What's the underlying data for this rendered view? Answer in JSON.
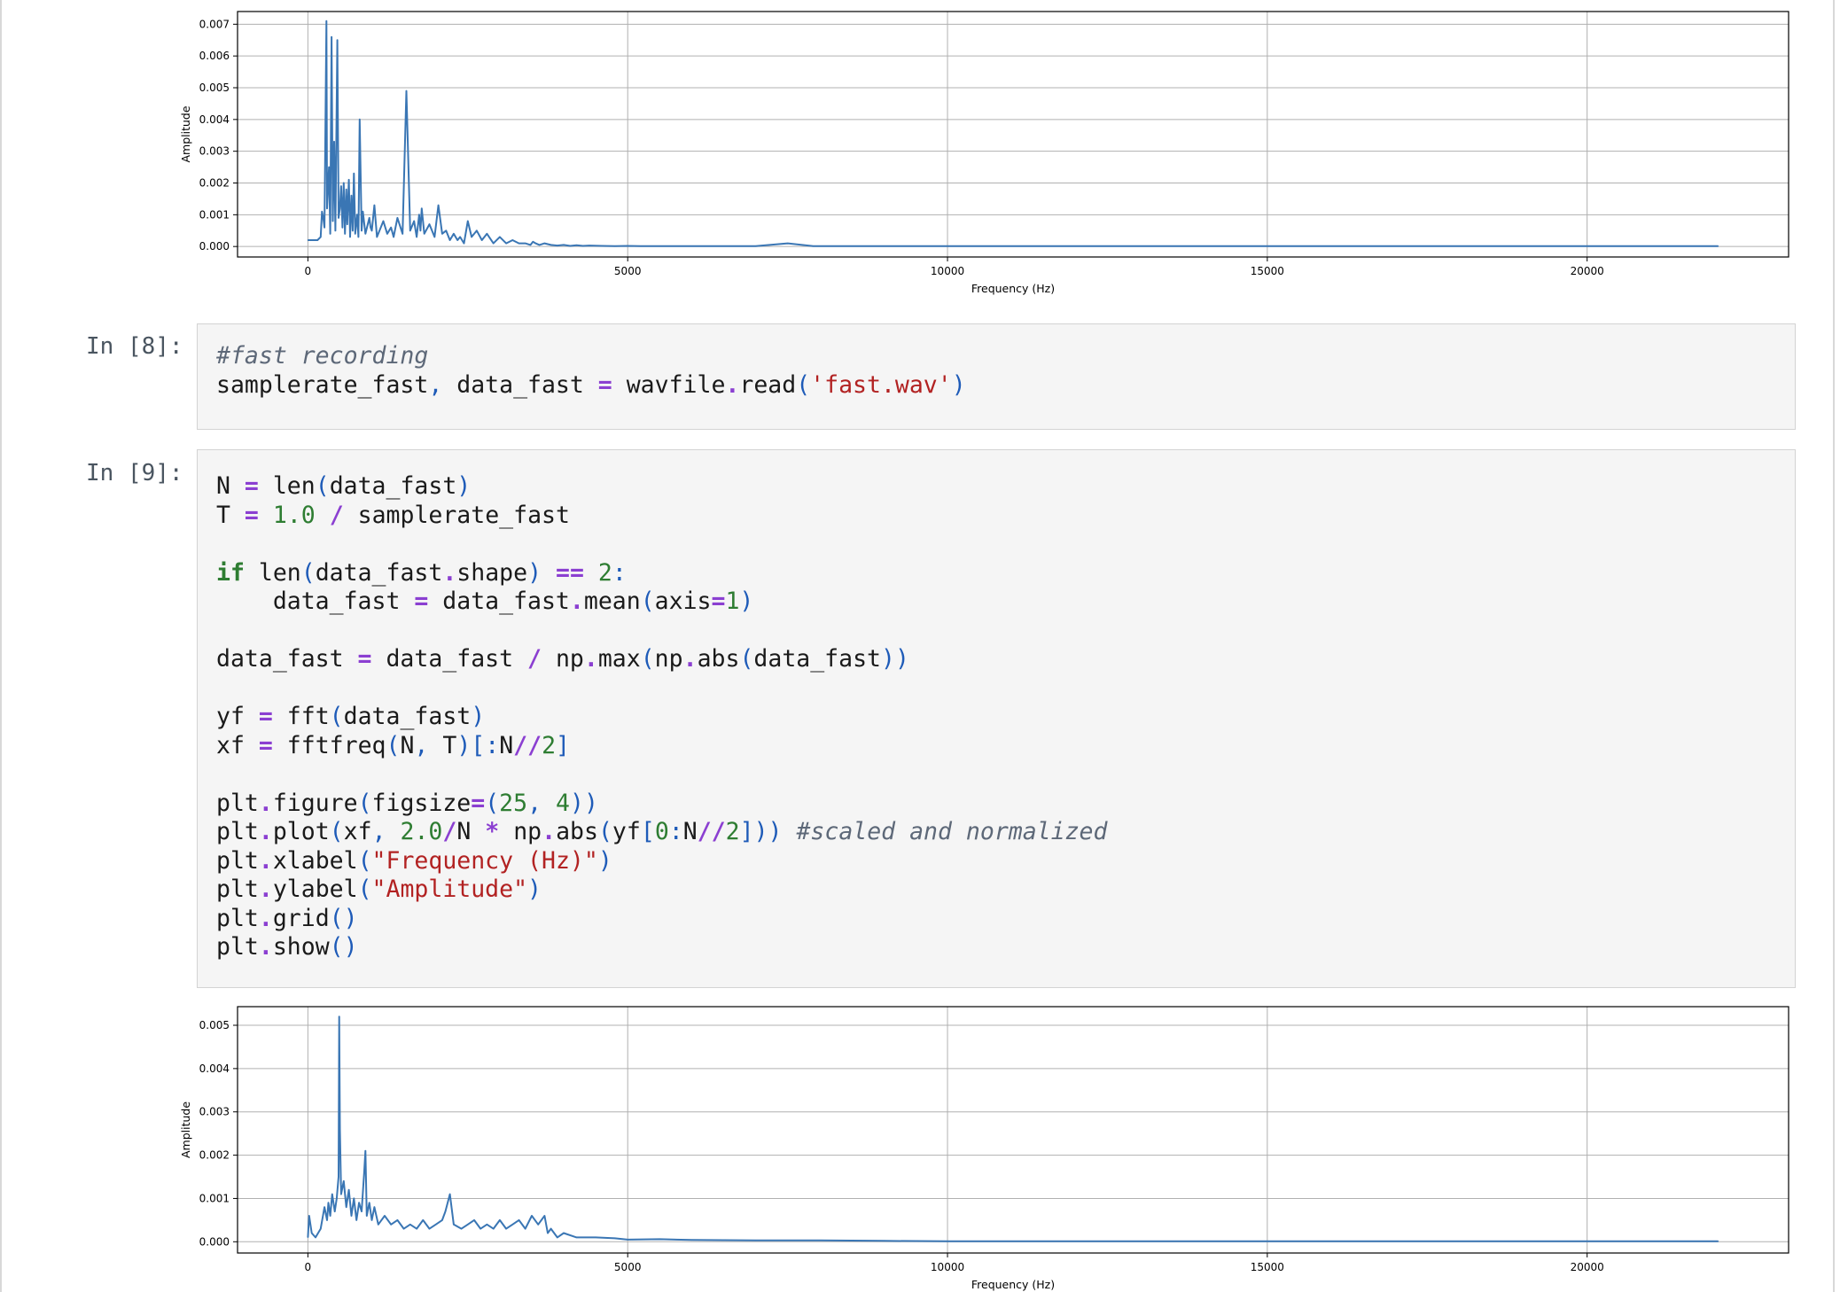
{
  "cells": {
    "cell8": {
      "prompt": "In [8]:",
      "lines": [
        [
          {
            "t": "#fast recording",
            "c": "c"
          }
        ],
        [
          {
            "t": "samplerate_fast"
          },
          {
            "t": ",",
            "c": "p"
          },
          {
            "t": " data_fast "
          },
          {
            "t": "=",
            "c": "o"
          },
          {
            "t": " wavfile"
          },
          {
            "t": ".",
            "c": "o"
          },
          {
            "t": "read"
          },
          {
            "t": "(",
            "c": "p"
          },
          {
            "t": "'fast.wav'",
            "c": "s"
          },
          {
            "t": ")",
            "c": "p"
          }
        ]
      ]
    },
    "cell9": {
      "prompt": "In [9]:",
      "lines": [
        [
          {
            "t": "N "
          },
          {
            "t": "=",
            "c": "o"
          },
          {
            "t": " len"
          },
          {
            "t": "(",
            "c": "p"
          },
          {
            "t": "data_fast"
          },
          {
            "t": ")",
            "c": "p"
          }
        ],
        [
          {
            "t": "T "
          },
          {
            "t": "=",
            "c": "o"
          },
          {
            "t": " "
          },
          {
            "t": "1.0",
            "c": "n"
          },
          {
            "t": " "
          },
          {
            "t": "/",
            "c": "o"
          },
          {
            "t": " samplerate_fast"
          }
        ],
        [],
        [
          {
            "t": "if",
            "c": "k"
          },
          {
            "t": " len"
          },
          {
            "t": "(",
            "c": "p"
          },
          {
            "t": "data_fast"
          },
          {
            "t": ".",
            "c": "o"
          },
          {
            "t": "shape"
          },
          {
            "t": ")",
            "c": "p"
          },
          {
            "t": " "
          },
          {
            "t": "==",
            "c": "o"
          },
          {
            "t": " "
          },
          {
            "t": "2",
            "c": "n"
          },
          {
            "t": ":",
            "c": "p"
          }
        ],
        [
          {
            "t": "    data_fast "
          },
          {
            "t": "=",
            "c": "o"
          },
          {
            "t": " data_fast"
          },
          {
            "t": ".",
            "c": "o"
          },
          {
            "t": "mean"
          },
          {
            "t": "(",
            "c": "p"
          },
          {
            "t": "axis"
          },
          {
            "t": "=",
            "c": "o"
          },
          {
            "t": "1",
            "c": "n"
          },
          {
            "t": ")",
            "c": "p"
          }
        ],
        [],
        [
          {
            "t": "data_fast "
          },
          {
            "t": "=",
            "c": "o"
          },
          {
            "t": " data_fast "
          },
          {
            "t": "/",
            "c": "o"
          },
          {
            "t": " np"
          },
          {
            "t": ".",
            "c": "o"
          },
          {
            "t": "max"
          },
          {
            "t": "(",
            "c": "p"
          },
          {
            "t": "np"
          },
          {
            "t": ".",
            "c": "o"
          },
          {
            "t": "abs"
          },
          {
            "t": "(",
            "c": "p"
          },
          {
            "t": "data_fast"
          },
          {
            "t": "))",
            "c": "p"
          }
        ],
        [],
        [
          {
            "t": "yf "
          },
          {
            "t": "=",
            "c": "o"
          },
          {
            "t": " fft"
          },
          {
            "t": "(",
            "c": "p"
          },
          {
            "t": "data_fast"
          },
          {
            "t": ")",
            "c": "p"
          }
        ],
        [
          {
            "t": "xf "
          },
          {
            "t": "=",
            "c": "o"
          },
          {
            "t": " fftfreq"
          },
          {
            "t": "(",
            "c": "p"
          },
          {
            "t": "N"
          },
          {
            "t": ",",
            "c": "p"
          },
          {
            "t": " T"
          },
          {
            "t": ")[:",
            "c": "p"
          },
          {
            "t": "N"
          },
          {
            "t": "//",
            "c": "o"
          },
          {
            "t": "2",
            "c": "n"
          },
          {
            "t": "]",
            "c": "p"
          }
        ],
        [],
        [
          {
            "t": "plt"
          },
          {
            "t": ".",
            "c": "o"
          },
          {
            "t": "figure"
          },
          {
            "t": "(",
            "c": "p"
          },
          {
            "t": "figsize"
          },
          {
            "t": "=",
            "c": "o"
          },
          {
            "t": "(",
            "c": "p"
          },
          {
            "t": "25",
            "c": "n"
          },
          {
            "t": ",",
            "c": "p"
          },
          {
            "t": " "
          },
          {
            "t": "4",
            "c": "n"
          },
          {
            "t": "))",
            "c": "p"
          }
        ],
        [
          {
            "t": "plt"
          },
          {
            "t": ".",
            "c": "o"
          },
          {
            "t": "plot"
          },
          {
            "t": "(",
            "c": "p"
          },
          {
            "t": "xf"
          },
          {
            "t": ",",
            "c": "p"
          },
          {
            "t": " "
          },
          {
            "t": "2.0",
            "c": "n"
          },
          {
            "t": "/",
            "c": "o"
          },
          {
            "t": "N "
          },
          {
            "t": "*",
            "c": "o"
          },
          {
            "t": " np"
          },
          {
            "t": ".",
            "c": "o"
          },
          {
            "t": "abs"
          },
          {
            "t": "(",
            "c": "p"
          },
          {
            "t": "yf"
          },
          {
            "t": "[",
            "c": "p"
          },
          {
            "t": "0",
            "c": "n"
          },
          {
            "t": ":",
            "c": "p"
          },
          {
            "t": "N"
          },
          {
            "t": "//",
            "c": "o"
          },
          {
            "t": "2",
            "c": "n"
          },
          {
            "t": "]))",
            "c": "p"
          },
          {
            "t": " "
          },
          {
            "t": "#scaled and normalized",
            "c": "c"
          }
        ],
        [
          {
            "t": "plt"
          },
          {
            "t": ".",
            "c": "o"
          },
          {
            "t": "xlabel"
          },
          {
            "t": "(",
            "c": "p"
          },
          {
            "t": "\"Frequency (Hz)\"",
            "c": "s"
          },
          {
            "t": ")",
            "c": "p"
          }
        ],
        [
          {
            "t": "plt"
          },
          {
            "t": ".",
            "c": "o"
          },
          {
            "t": "ylabel"
          },
          {
            "t": "(",
            "c": "p"
          },
          {
            "t": "\"Amplitude\"",
            "c": "s"
          },
          {
            "t": ")",
            "c": "p"
          }
        ],
        [
          {
            "t": "plt"
          },
          {
            "t": ".",
            "c": "o"
          },
          {
            "t": "grid"
          },
          {
            "t": "()",
            "c": "p"
          }
        ],
        [
          {
            "t": "plt"
          },
          {
            "t": ".",
            "c": "o"
          },
          {
            "t": "show"
          },
          {
            "t": "()",
            "c": "p"
          }
        ]
      ]
    }
  },
  "colors": {
    "line": "#3a76b4",
    "grid": "#b0b0b0"
  },
  "chart_data": [
    {
      "type": "line",
      "xlabel": "Frequency (Hz)",
      "ylabel": "Amplitude",
      "xlim": [
        -1100,
        23150
      ],
      "ylim": [
        -0.00033,
        0.0074
      ],
      "xticks": [
        0,
        5000,
        10000,
        15000,
        20000
      ],
      "yticks": [
        0.0,
        0.001,
        0.002,
        0.003,
        0.004,
        0.005,
        0.006,
        0.007
      ],
      "ytick_labels": [
        "0.000",
        "0.001",
        "0.002",
        "0.003",
        "0.004",
        "0.005",
        "0.006",
        "0.007"
      ],
      "grid": true,
      "series": [
        {
          "x": [
            0,
            150,
            200,
            220,
            240,
            260,
            290,
            300,
            330,
            350,
            370,
            390,
            410,
            430,
            460,
            480,
            500,
            520,
            540,
            560,
            580,
            600,
            615,
            640,
            660,
            680,
            700,
            720,
            740,
            770,
            790,
            810,
            840,
            860,
            900,
            960,
            980,
            1000,
            1040,
            1080,
            1120,
            1180,
            1240,
            1300,
            1340,
            1400,
            1480,
            1540,
            1600,
            1660,
            1700,
            1740,
            1760,
            1780,
            1820,
            1900,
            1980,
            2040,
            2100,
            2160,
            2220,
            2280,
            2340,
            2380,
            2440,
            2500,
            2560,
            2640,
            2720,
            2800,
            2900,
            3000,
            3100,
            3200,
            3300,
            3400,
            3480,
            3520,
            3560,
            3620,
            3700,
            3800,
            3900,
            4000,
            4100,
            4200,
            4300,
            4400,
            4600,
            4800,
            5000,
            5200,
            5500,
            5800,
            6200,
            6600,
            7000,
            7500,
            7900,
            8000,
            8200,
            9000,
            10000,
            12000,
            15000,
            15800,
            17000,
            20000,
            22050
          ],
          "y": [
            0.0002,
            0.0002,
            0.0003,
            0.0011,
            0.0009,
            0.0006,
            0.0071,
            0.0012,
            0.0025,
            0.0004,
            0.0066,
            0.0008,
            0.0033,
            0.0005,
            0.0065,
            0.0009,
            0.0012,
            0.0019,
            0.0006,
            0.002,
            0.0004,
            0.0018,
            0.0007,
            0.0021,
            0.0003,
            0.0016,
            0.0005,
            0.0023,
            0.0004,
            0.001,
            0.0003,
            0.004,
            0.0005,
            0.0011,
            0.0004,
            0.0009,
            0.0006,
            0.0005,
            0.0013,
            0.0003,
            0.0005,
            0.0008,
            0.0004,
            0.0006,
            0.0003,
            0.0009,
            0.0004,
            0.0049,
            0.0005,
            0.0008,
            0.0003,
            0.001,
            0.0005,
            0.0012,
            0.0004,
            0.0007,
            0.0003,
            0.0013,
            0.0004,
            0.0005,
            0.0002,
            0.0004,
            0.0002,
            0.0003,
            0.0001,
            0.0008,
            0.0003,
            0.0005,
            0.0002,
            0.0004,
            0.0001,
            0.0003,
            0.0001,
            0.0002,
            0.0001,
            0.0001,
            5e-05,
            0.00015,
            0.0001,
            5e-05,
            0.0001,
            5e-05,
            3e-05,
            5e-05,
            2e-05,
            4e-05,
            2e-05,
            3e-05,
            2e-05,
            1e-05,
            2e-05,
            1e-05,
            1e-05,
            1e-05,
            1e-05,
            1e-05,
            1e-05,
            0.0001,
            1e-05,
            1e-05,
            1e-05,
            1e-05,
            1e-05,
            1e-05,
            1e-05,
            1e-05,
            1e-05,
            1e-05,
            1e-05
          ]
        }
      ]
    },
    {
      "type": "line",
      "xlabel": "Frequency (Hz)",
      "ylabel": "Amplitude",
      "xlim": [
        -1100,
        23150
      ],
      "ylim": [
        -0.00026,
        0.00543
      ],
      "xticks": [
        0,
        5000,
        10000,
        15000,
        20000
      ],
      "yticks": [
        0.0,
        0.001,
        0.002,
        0.003,
        0.004,
        0.005
      ],
      "ytick_labels": [
        "0.000",
        "0.001",
        "0.002",
        "0.003",
        "0.004",
        "0.005"
      ],
      "grid": true,
      "series": [
        {
          "x": [
            0,
            20,
            60,
            120,
            200,
            260,
            300,
            320,
            350,
            380,
            420,
            450,
            480,
            490,
            500,
            520,
            560,
            600,
            640,
            680,
            720,
            760,
            800,
            840,
            880,
            900,
            920,
            960,
            1000,
            1040,
            1100,
            1200,
            1300,
            1400,
            1500,
            1600,
            1700,
            1800,
            1900,
            2000,
            2100,
            2150,
            2220,
            2280,
            2400,
            2500,
            2600,
            2700,
            2800,
            2900,
            3000,
            3100,
            3200,
            3300,
            3400,
            3500,
            3600,
            3700,
            3750,
            3800,
            3900,
            4000,
            4200,
            4500,
            4800,
            5000,
            5500,
            6000,
            7000,
            8000,
            9000,
            10000,
            12000,
            15000,
            15800,
            17000,
            20000,
            22050
          ],
          "y": [
            0.0001,
            0.0006,
            0.0002,
            0.0001,
            0.0003,
            0.0008,
            0.0005,
            0.0009,
            0.0006,
            0.0011,
            0.0007,
            0.001,
            0.0015,
            0.0052,
            0.0026,
            0.0011,
            0.0014,
            0.0008,
            0.0012,
            0.0006,
            0.001,
            0.0005,
            0.0009,
            0.0007,
            0.0016,
            0.0021,
            0.0006,
            0.0009,
            0.0005,
            0.0008,
            0.0004,
            0.0006,
            0.0004,
            0.0005,
            0.0003,
            0.0004,
            0.0003,
            0.0005,
            0.0003,
            0.0004,
            0.0005,
            0.0007,
            0.0011,
            0.0004,
            0.0003,
            0.0004,
            0.0005,
            0.0003,
            0.0004,
            0.0003,
            0.0005,
            0.0003,
            0.0004,
            0.0005,
            0.0003,
            0.0006,
            0.0004,
            0.0006,
            0.0002,
            0.0003,
            0.0001,
            0.0002,
            0.0001,
            0.0001,
            8e-05,
            5e-05,
            6e-05,
            4e-05,
            3e-05,
            3e-05,
            2e-05,
            1e-05,
            1e-05,
            1e-05,
            1e-05,
            1e-05,
            1e-05,
            1e-05
          ]
        }
      ]
    }
  ]
}
